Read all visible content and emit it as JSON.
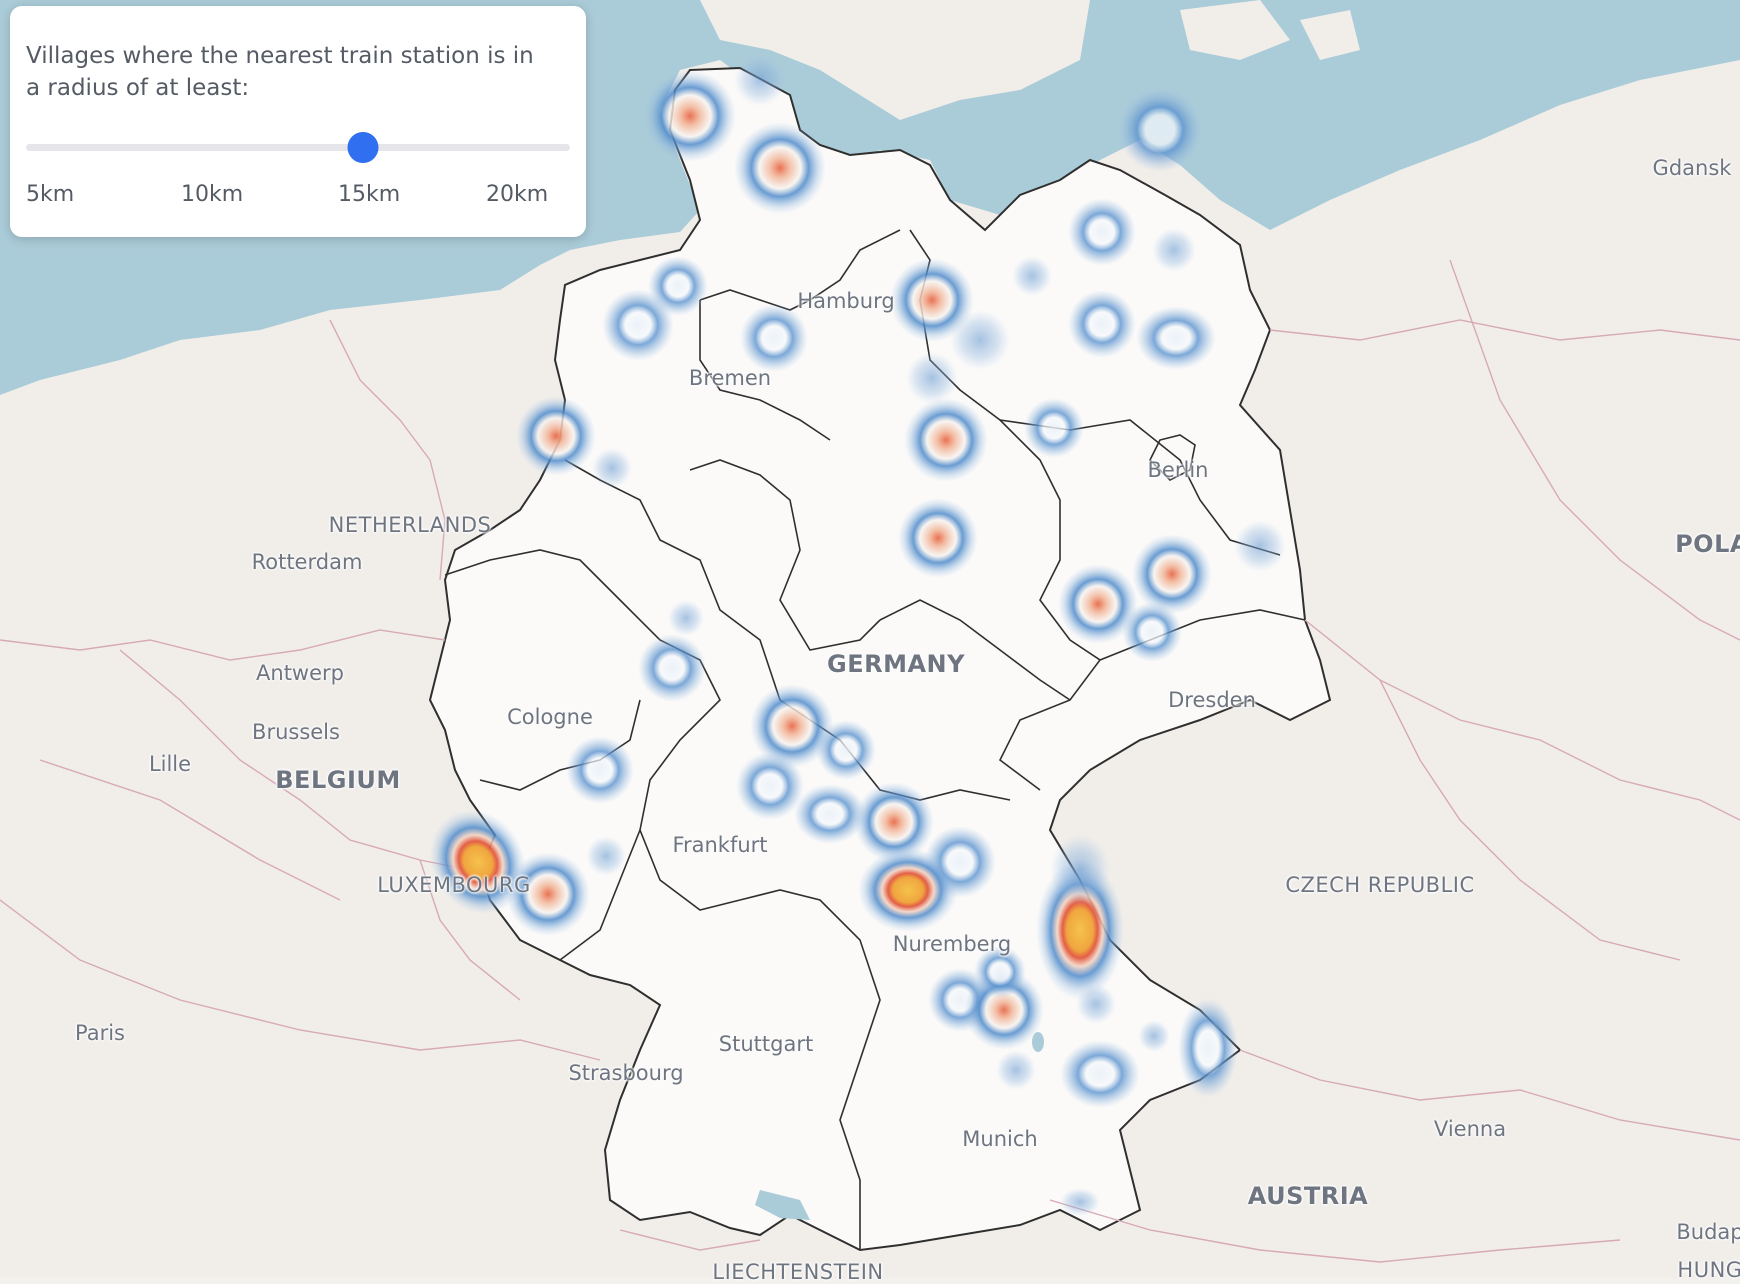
{
  "panel": {
    "title": "Villages where the nearest train station is in a radius of at least:",
    "slider": {
      "min_km": 5,
      "max_km": 20,
      "value_km": 15
    },
    "ticks": [
      "5km",
      "10km",
      "15km",
      "20km"
    ]
  },
  "map": {
    "cities": {
      "hamburg": "Hamburg",
      "bremen": "Bremen",
      "berlin": "Berlin",
      "dresden": "Dresden",
      "cologne": "Cologne",
      "frankfurt": "Frankfurt",
      "nuremberg": "Nuremberg",
      "stuttgart": "Stuttgart",
      "munich": "Munich",
      "strasbourg": "Strasbourg",
      "paris": "Paris",
      "lille": "Lille",
      "brussels": "Brussels",
      "antwerp": "Antwerp",
      "rotterdam": "Rotterdam",
      "vienna": "Vienna",
      "gdansk": "Gdansk",
      "budapest": "Budap"
    },
    "countries": {
      "germany": "GERMANY",
      "netherlands": "NETHERLANDS",
      "belgium": "BELGIUM",
      "luxembourg": "LUXEMBOURG",
      "czech": "CZECH REPUBLIC",
      "austria": "AUSTRIA",
      "poland": "POLA",
      "liechtenstein": "LIECHTENSTEIN",
      "hungary": "HUNG"
    },
    "colors": {
      "sea": "#aacbd8",
      "land": "#f1eeea",
      "germany": "#fbfaf9",
      "border": "#2f2f2f",
      "heat_low": "#4a86c8",
      "heat_high": "#f3b54a"
    }
  }
}
